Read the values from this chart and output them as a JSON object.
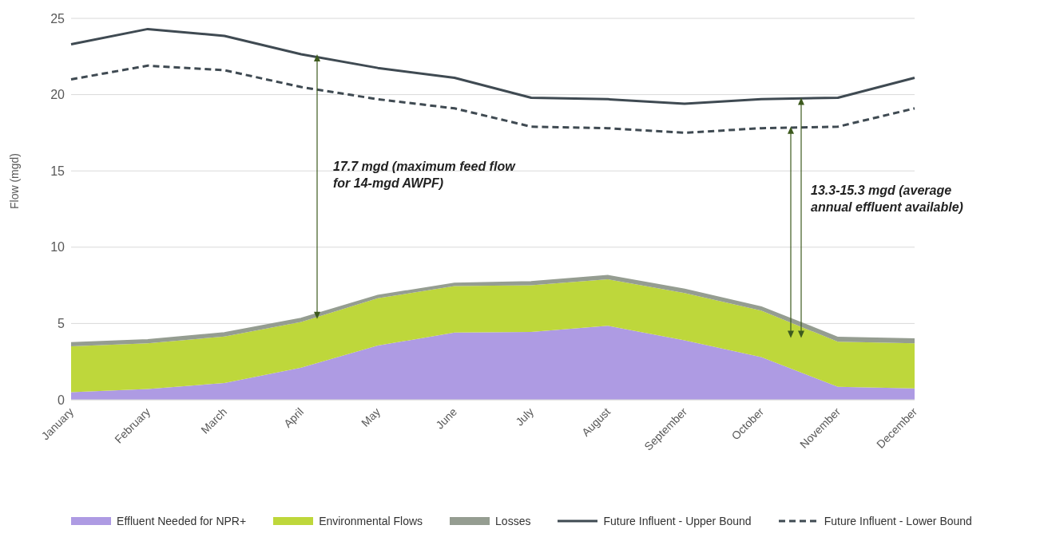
{
  "chart_data": {
    "type": "area",
    "ylabel": "Flow (mgd)",
    "categories": [
      "January",
      "February",
      "March",
      "April",
      "May",
      "June",
      "July",
      "August",
      "September",
      "October",
      "November",
      "December"
    ],
    "stacked": true,
    "ylim": [
      0,
      25
    ],
    "yticks": [
      0,
      5,
      10,
      15,
      20,
      25
    ],
    "grid": "y",
    "legend": "bottom",
    "series": [
      {
        "name": "Effluent Needed for NPR+",
        "type": "area",
        "color": "#ae9be3",
        "values": [
          0.5,
          0.7,
          1.1,
          2.1,
          3.55,
          4.4,
          4.45,
          4.85,
          3.9,
          2.8,
          0.85,
          0.75
        ]
      },
      {
        "name": "Environmental Flows",
        "type": "area",
        "color": "#bed73b",
        "values": [
          3.0,
          3.0,
          3.05,
          3.0,
          3.1,
          3.05,
          3.05,
          3.05,
          3.1,
          3.05,
          2.95,
          2.95
        ]
      },
      {
        "name": "Losses",
        "type": "area",
        "color": "#959d91",
        "values": [
          0.2,
          0.2,
          0.2,
          0.2,
          0.15,
          0.15,
          0.2,
          0.2,
          0.2,
          0.2,
          0.25,
          0.25
        ]
      },
      {
        "name": "Future Influent - Upper Bound",
        "type": "line",
        "color": "#3f4a52",
        "line_style": "solid",
        "values": [
          23.3,
          24.3,
          23.85,
          22.65,
          21.75,
          21.1,
          19.8,
          19.7,
          19.4,
          19.7,
          19.8,
          21.1
        ]
      },
      {
        "name": "Future Influent - Lower Bound",
        "type": "line",
        "color": "#3f4a52",
        "line_style": "dashed",
        "values": [
          21.0,
          21.9,
          21.6,
          20.5,
          19.7,
          19.1,
          17.9,
          17.8,
          17.5,
          17.8,
          17.9,
          19.1
        ]
      }
    ],
    "annotations": [
      "17.7 mgd (maximum feed flow for 14-mgd AWPF)",
      "13.3-15.3 mgd (average annual effluent available)"
    ]
  }
}
